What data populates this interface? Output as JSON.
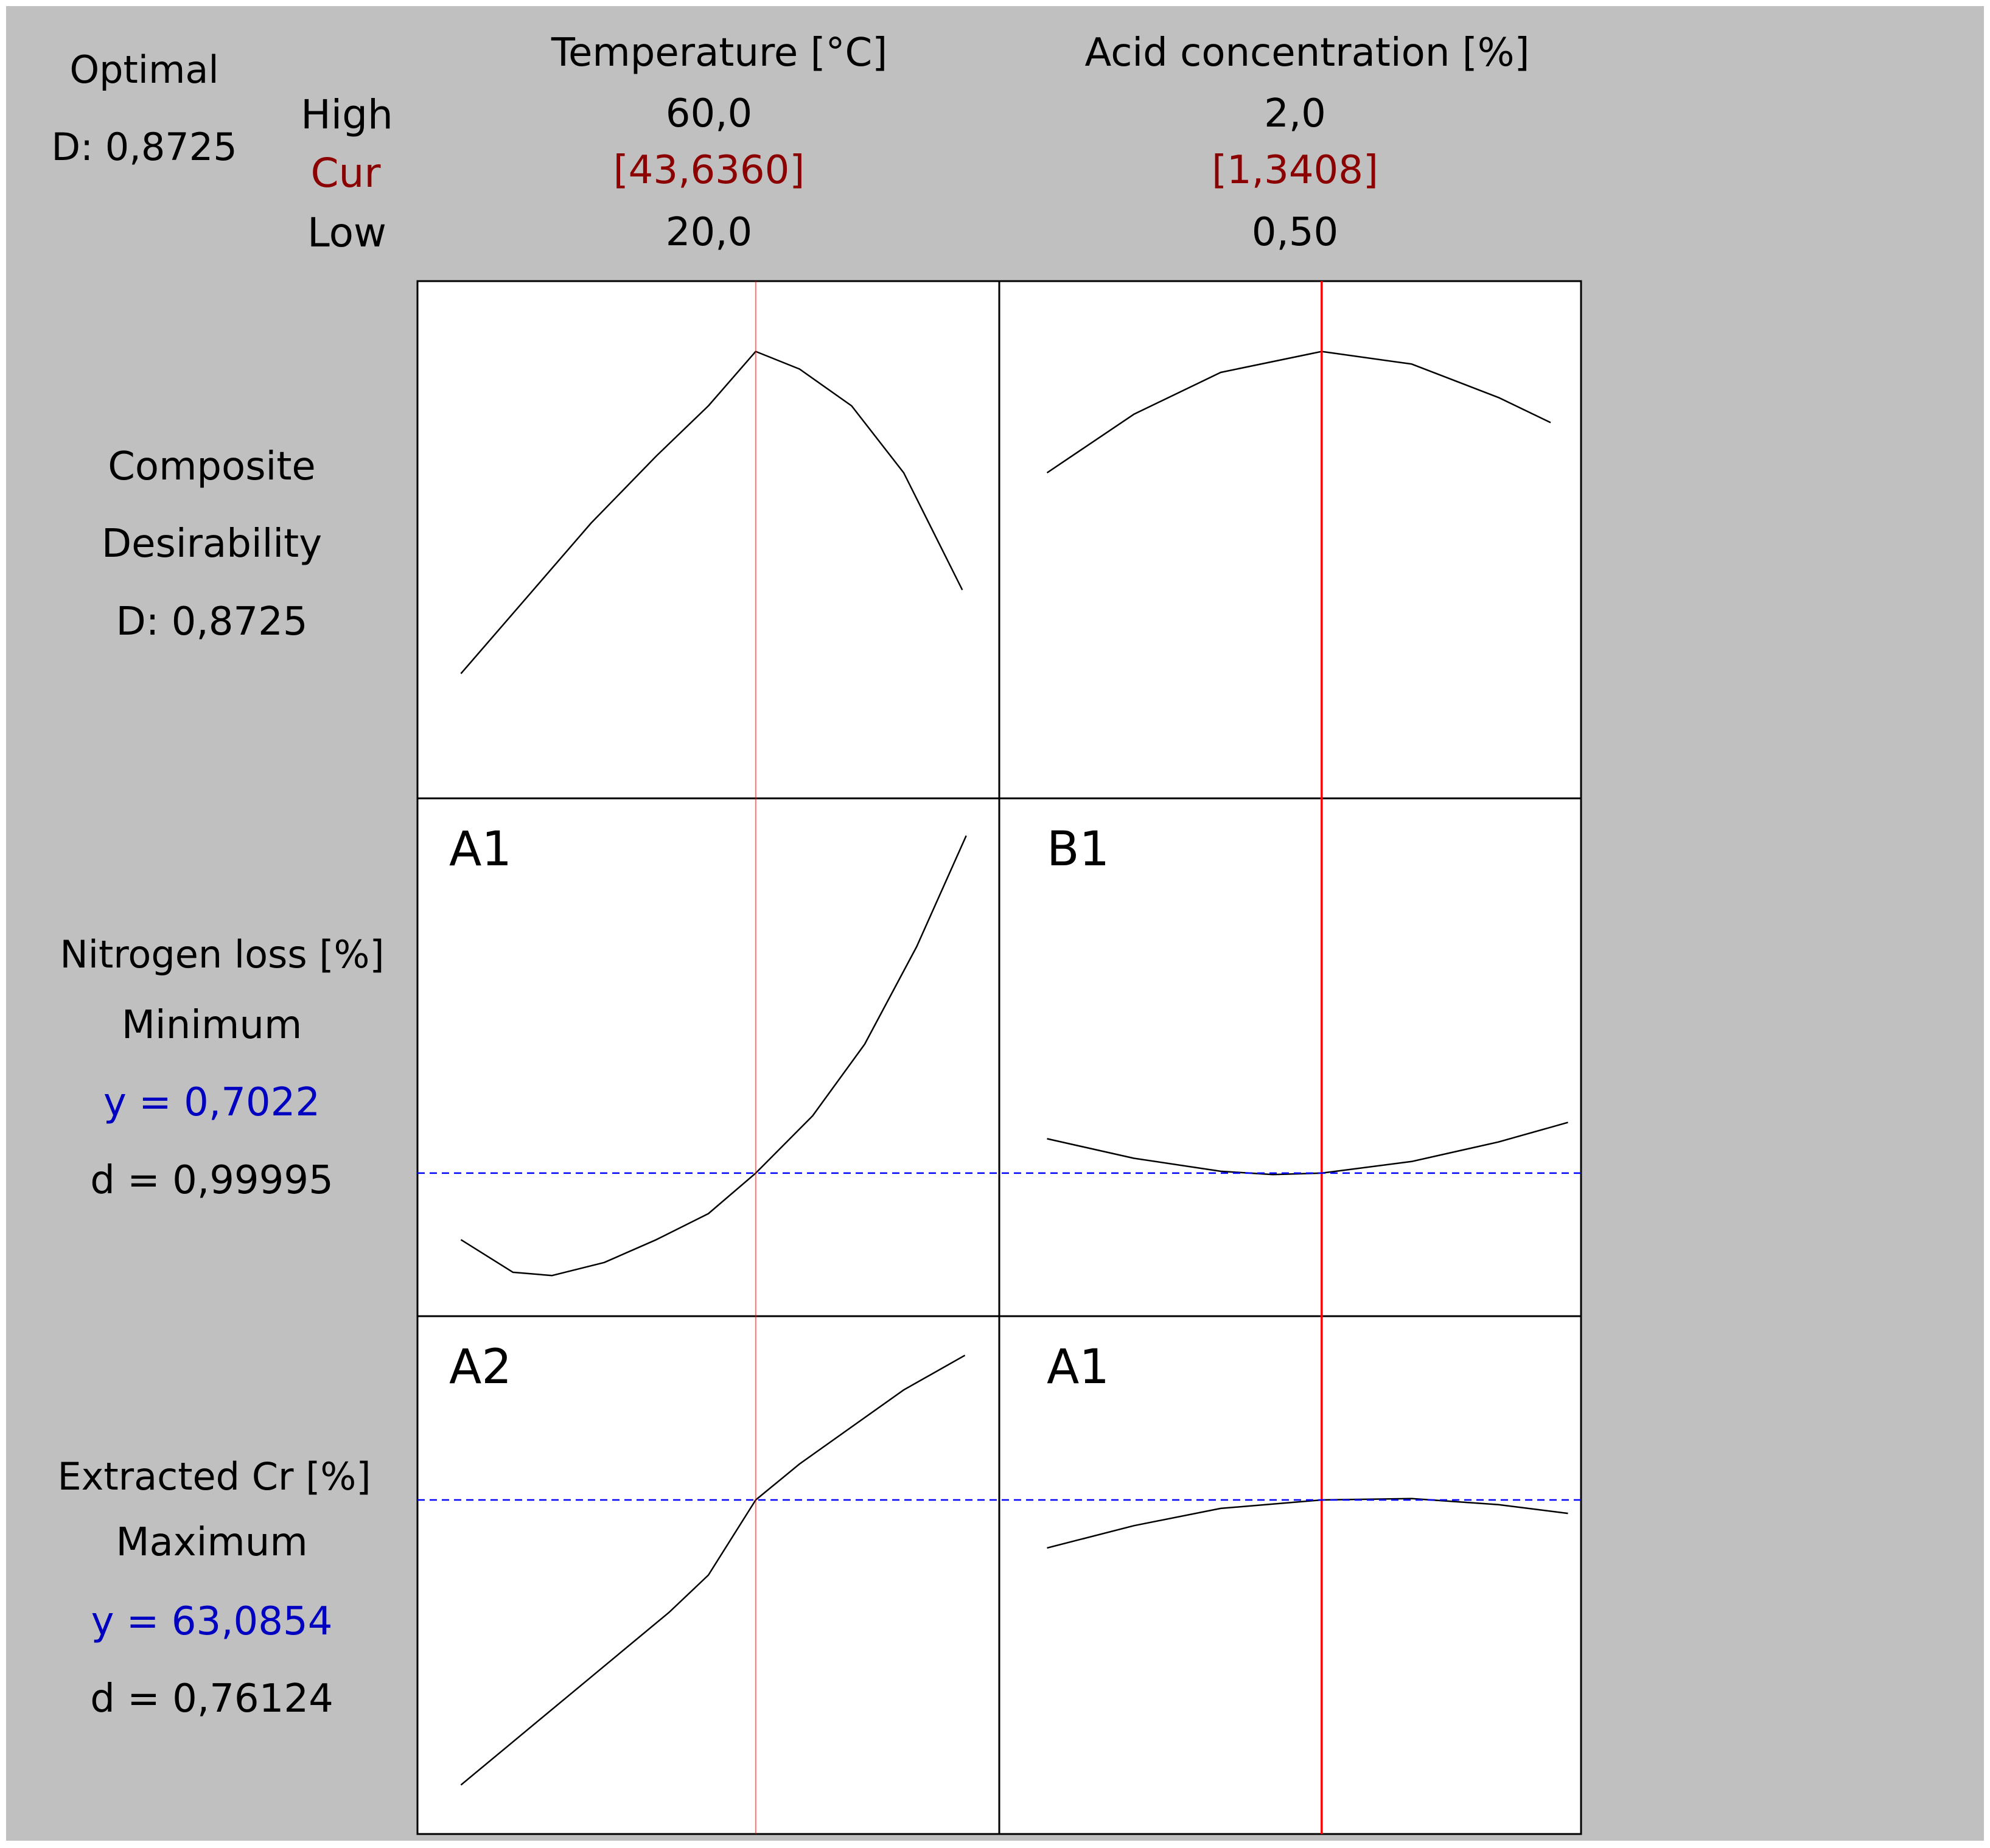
{
  "optimal": {
    "title": "Optimal",
    "d_label": "D: 0,8725"
  },
  "levels": {
    "high": "High",
    "cur": "Cur",
    "low": "Low"
  },
  "factors": [
    {
      "name": "Temperature [°C]",
      "high": "60,0",
      "cur": "[43,6360]",
      "low": "20,0"
    },
    {
      "name": "Acid concentration [%]",
      "high": "2,0",
      "cur": "[1,3408]",
      "low": "0,50"
    }
  ],
  "responses": [
    {
      "line1": "Composite",
      "line2": "Desirability",
      "line3": "D: 0,8725"
    },
    {
      "name": "Nitrogen loss [%]",
      "goal": "Minimum",
      "y": "y = 0,7022",
      "d": "d = 0,99995"
    },
    {
      "name": "Extracted Cr [%]",
      "goal": "Maximum",
      "y": "y = 63,0854",
      "d": "d = 0,76124"
    }
  ],
  "panel_tags": {
    "r1c1": "A1",
    "r1c2": "B1",
    "r2c1": "A2",
    "r2c2": "A1"
  },
  "colors": {
    "background": "#c0c0c0",
    "current_setting_line": "#ff0000",
    "response_reference_line": "#0000ff",
    "cur_text": "#8b0000",
    "y_text": "#0000c0"
  },
  "chart_data": {
    "type": "line",
    "subtype": "optimization-profile",
    "factors": [
      {
        "name": "Temperature [°C]",
        "low": 20.0,
        "high": 60.0,
        "cur": 43.636
      },
      {
        "name": "Acid concentration [%]",
        "low": 0.5,
        "high": 2.0,
        "cur": 1.3408
      }
    ],
    "rows": [
      {
        "response": "Composite Desirability",
        "tag_temperature": "",
        "tag_acid": "",
        "y_at_cur": 0.8725,
        "temperature_curve": {
          "x": [
            21,
            26,
            31,
            36,
            40,
            43.636,
            47,
            51,
            55,
            59.5
          ],
          "y": [
            0.68,
            0.725,
            0.77,
            0.81,
            0.84,
            0.8725,
            0.862,
            0.84,
            0.8,
            0.73
          ]
        },
        "acid_curve": {
          "x": [
            0.55,
            0.8,
            1.05,
            1.3408,
            1.6,
            1.85,
            2.0
          ],
          "y": [
            0.8,
            0.835,
            0.86,
            0.8725,
            0.865,
            0.845,
            0.83
          ]
        }
      },
      {
        "response": "Nitrogen loss [%]",
        "tag_temperature": "A1",
        "tag_acid": "B1",
        "y_at_cur": 0.7022,
        "temperature_curve": {
          "x": [
            21,
            25,
            28,
            32,
            36,
            40,
            43.636,
            48,
            52,
            56,
            59.8
          ],
          "y": [
            0.6,
            0.55,
            0.545,
            0.565,
            0.6,
            0.64,
            0.7022,
            0.79,
            0.9,
            1.05,
            1.22
          ]
        },
        "acid_curve": {
          "x": [
            0.55,
            0.8,
            1.05,
            1.2,
            1.3408,
            1.6,
            1.85,
            2.05
          ],
          "y": [
            0.755,
            0.725,
            0.705,
            0.7,
            0.7022,
            0.72,
            0.75,
            0.78
          ]
        }
      },
      {
        "response": "Extracted Cr [%]",
        "tag_temperature": "A2",
        "tag_acid": "A1",
        "y_at_cur": 63.0854,
        "temperature_curve": {
          "x": [
            21,
            25,
            29,
            33,
            37,
            40,
            43.636,
            47,
            51,
            55,
            59.7
          ],
          "y": [
            40,
            43.5,
            47,
            50.5,
            54,
            57,
            63.0854,
            66,
            69,
            72,
            74.8
          ]
        },
        "acid_curve": {
          "x": [
            0.55,
            0.8,
            1.05,
            1.3408,
            1.6,
            1.85,
            2.05
          ],
          "y": [
            59.2,
            61,
            62.4,
            63.0854,
            63.2,
            62.7,
            62
          ]
        }
      }
    ]
  }
}
